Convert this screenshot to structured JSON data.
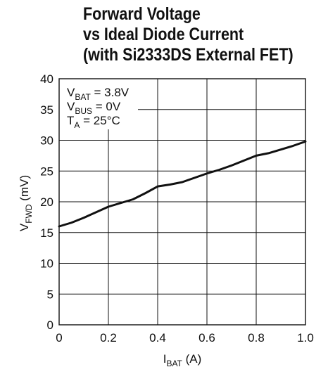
{
  "chart_data": {
    "type": "line",
    "title_lines": [
      "Forward Voltage",
      "vs Ideal Diode Current",
      "(with Si2333DS External FET)"
    ],
    "xlabel": {
      "main": "I",
      "sub": "BAT",
      "unit": " (A)"
    },
    "ylabel": {
      "main": "V",
      "sub": "FWD",
      "unit": " (mV)"
    },
    "xlim": [
      0,
      1.0
    ],
    "ylim": [
      0,
      40
    ],
    "x_ticks": [
      "0",
      "0.2",
      "0.4",
      "0.6",
      "0.8",
      "1.0"
    ],
    "y_ticks": [
      "0",
      "5",
      "10",
      "15",
      "20",
      "25",
      "30",
      "35",
      "40"
    ],
    "grid": true,
    "annotations": [
      {
        "main": "V",
        "sub": "BAT",
        "rest": " = 3.8V"
      },
      {
        "main": "V",
        "sub": "BUS",
        "rest": " = 0V"
      },
      {
        "main": "T",
        "sub": "A",
        "rest": " = 25°C"
      }
    ],
    "series": [
      {
        "x": [
          0.0,
          0.05,
          0.1,
          0.15,
          0.2,
          0.25,
          0.3,
          0.35,
          0.4,
          0.45,
          0.5,
          0.55,
          0.6,
          0.65,
          0.7,
          0.75,
          0.8,
          0.85,
          0.9,
          0.95,
          1.0
        ],
        "y": [
          16.0,
          16.6,
          17.4,
          18.3,
          19.2,
          19.8,
          20.4,
          21.4,
          22.5,
          22.8,
          23.2,
          23.9,
          24.6,
          25.2,
          25.9,
          26.7,
          27.5,
          27.9,
          28.5,
          29.1,
          29.8
        ]
      }
    ]
  }
}
